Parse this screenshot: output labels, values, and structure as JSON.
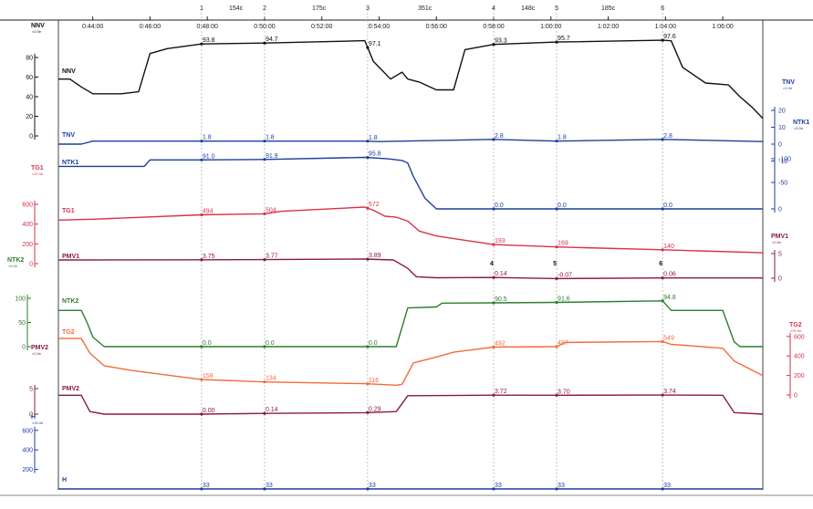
{
  "chart_data": {
    "type": "line",
    "time_ticks": [
      "0:44:00",
      "0:46:00",
      "0:48:00",
      "0:50:00",
      "0:52:00",
      "0:54:00",
      "0:56:00",
      "0:58:00",
      "1:00:00",
      "1:02:00",
      "1:04:00",
      "1:06:00"
    ],
    "x_range_min": [
      42.8,
      67.4
    ],
    "events": [
      {
        "mark": "1",
        "t": 47.8
      },
      {
        "mark": "2",
        "t": 50.0
      },
      {
        "mark": "3",
        "t": 53.6
      },
      {
        "mark": "4",
        "t": 58.0
      },
      {
        "mark": "5",
        "t": 60.2
      },
      {
        "mark": "6",
        "t": 63.9
      }
    ],
    "intervals": [
      {
        "label": "154c",
        "t": 49.0
      },
      {
        "label": "175c",
        "t": 51.9
      },
      {
        "label": "351c",
        "t": 55.6
      },
      {
        "label": "148c",
        "t": 59.2
      },
      {
        "label": "185c",
        "t": 62.0
      }
    ],
    "series": [
      {
        "name": "NNV",
        "color": "#111111",
        "points": [
          [
            42.8,
            58
          ],
          [
            43.2,
            58
          ],
          [
            43.6,
            50
          ],
          [
            44.0,
            43
          ],
          [
            45.0,
            43
          ],
          [
            45.6,
            45
          ],
          [
            46.0,
            84
          ],
          [
            46.6,
            89
          ],
          [
            47.8,
            93.8
          ],
          [
            50.0,
            94.7
          ],
          [
            53.5,
            97.1
          ],
          [
            53.8,
            76
          ],
          [
            54.2,
            64
          ],
          [
            54.4,
            58
          ],
          [
            54.8,
            65
          ],
          [
            55.0,
            58
          ],
          [
            55.4,
            55
          ],
          [
            56.0,
            47
          ],
          [
            56.6,
            47
          ],
          [
            57.0,
            88
          ],
          [
            58.0,
            93.3
          ],
          [
            60.2,
            95.7
          ],
          [
            63.9,
            97.6
          ],
          [
            64.2,
            97
          ],
          [
            64.6,
            70
          ],
          [
            65.4,
            54
          ],
          [
            66.2,
            52
          ],
          [
            66.6,
            40
          ],
          [
            67.0,
            30
          ],
          [
            67.4,
            18
          ]
        ],
        "labels": [
          {
            "text": "93.8",
            "t": 47.8
          },
          {
            "text": "94.7",
            "t": 50.0
          },
          {
            "text": "97.1",
            "t": 53.6
          },
          {
            "text": "93.3",
            "t": 58.0
          },
          {
            "text": "95.7",
            "t": 60.2
          },
          {
            "text": "97.6",
            "t": 63.9
          }
        ]
      },
      {
        "name": "TNV",
        "color": "#1c3f9c",
        "points": [
          [
            42.8,
            0
          ],
          [
            43.6,
            0
          ],
          [
            44.0,
            1.8
          ],
          [
            45.0,
            1.8
          ],
          [
            47.8,
            1.8
          ],
          [
            50.0,
            1.8
          ],
          [
            53.5,
            1.8
          ],
          [
            54.0,
            1.5
          ],
          [
            58.0,
            2.8
          ],
          [
            60.2,
            1.8
          ],
          [
            63.9,
            2.8
          ],
          [
            67.4,
            1.5
          ]
        ],
        "labels": [
          {
            "text": "1.8",
            "t": 47.8
          },
          {
            "text": "1.8",
            "t": 50.0
          },
          {
            "text": "1.8",
            "t": 53.6
          },
          {
            "text": "2.8",
            "t": 58.0
          },
          {
            "text": "1.8",
            "t": 60.2
          },
          {
            "text": "2.8",
            "t": 63.9
          }
        ]
      },
      {
        "name": "NTK1",
        "color": "#1c3f9c",
        "points": [
          [
            42.8,
            79
          ],
          [
            45.8,
            79
          ],
          [
            46.0,
            91
          ],
          [
            47.8,
            91.0
          ],
          [
            50.0,
            91.9
          ],
          [
            53.5,
            95.8
          ],
          [
            54.3,
            93
          ],
          [
            54.8,
            90
          ],
          [
            55.0,
            85
          ],
          [
            55.2,
            60
          ],
          [
            55.6,
            20
          ],
          [
            56.0,
            0
          ],
          [
            58.0,
            0
          ],
          [
            60.2,
            0
          ],
          [
            63.9,
            0
          ],
          [
            67.4,
            0
          ]
        ],
        "labels": [
          {
            "text": "91.0",
            "t": 47.8
          },
          {
            "text": "91.9",
            "t": 50.0
          },
          {
            "text": "95.8",
            "t": 53.6
          },
          {
            "text": "0.0",
            "t": 58.0
          },
          {
            "text": "0.0",
            "t": 60.2
          },
          {
            "text": "0.0",
            "t": 63.9
          }
        ]
      },
      {
        "name": "TG1",
        "color": "#d6324a",
        "points": [
          [
            42.8,
            440
          ],
          [
            44.0,
            450
          ],
          [
            47.8,
            494
          ],
          [
            50.0,
            504
          ],
          [
            50.6,
            530
          ],
          [
            53.5,
            572
          ],
          [
            53.8,
            540
          ],
          [
            54.2,
            480
          ],
          [
            54.6,
            470
          ],
          [
            55.0,
            430
          ],
          [
            55.4,
            330
          ],
          [
            56.0,
            280
          ],
          [
            58.0,
            193
          ],
          [
            60.2,
            169
          ],
          [
            63.9,
            140
          ],
          [
            67.4,
            110
          ]
        ],
        "labels": [
          {
            "text": "494",
            "t": 47.8
          },
          {
            "text": "504",
            "t": 50.0
          },
          {
            "text": "572",
            "t": 53.6
          },
          {
            "text": "193",
            "t": 58.0
          },
          {
            "text": "169",
            "t": 60.2
          },
          {
            "text": "140",
            "t": 63.9
          }
        ]
      },
      {
        "name": "PMV1",
        "color": "#8a1c3a",
        "points": [
          [
            42.8,
            3.7
          ],
          [
            47.8,
            3.75
          ],
          [
            50.0,
            3.77
          ],
          [
            53.5,
            3.89
          ],
          [
            54.5,
            3.7
          ],
          [
            55.0,
            2.0
          ],
          [
            55.3,
            0.3
          ],
          [
            56.0,
            0.1
          ],
          [
            58.0,
            0.14
          ],
          [
            60.2,
            -0.07
          ],
          [
            63.9,
            0.06
          ],
          [
            67.4,
            0.05
          ]
        ],
        "labels": [
          {
            "text": "3.75",
            "t": 47.8
          },
          {
            "text": "3.77",
            "t": 50.0
          },
          {
            "text": "3.89",
            "t": 53.6
          },
          {
            "text": "0.14",
            "t": 58.0
          },
          {
            "text": "-0.07",
            "t": 60.2
          },
          {
            "text": "0.06",
            "t": 63.9
          }
        ]
      },
      {
        "name": "NTK2",
        "color": "#2e7d2e",
        "points": [
          [
            42.8,
            75
          ],
          [
            43.6,
            75
          ],
          [
            43.8,
            50
          ],
          [
            44.0,
            20
          ],
          [
            44.4,
            0
          ],
          [
            47.8,
            0.0
          ],
          [
            50.0,
            0.0
          ],
          [
            53.5,
            0.0
          ],
          [
            54.6,
            0
          ],
          [
            55.0,
            80
          ],
          [
            56.0,
            82
          ],
          [
            56.2,
            90
          ],
          [
            58.0,
            90.5
          ],
          [
            60.2,
            91.6
          ],
          [
            63.9,
            94.8
          ],
          [
            64.2,
            75
          ],
          [
            66.0,
            75
          ],
          [
            66.4,
            10
          ],
          [
            66.6,
            0
          ],
          [
            67.4,
            0
          ]
        ],
        "labels": [
          {
            "text": "0.0",
            "t": 47.8
          },
          {
            "text": "0.0",
            "t": 50.0
          },
          {
            "text": "0.0",
            "t": 53.6
          },
          {
            "text": "90.5",
            "t": 58.0
          },
          {
            "text": "91.6",
            "t": 60.2
          },
          {
            "text": "94.8",
            "t": 63.9
          }
        ]
      },
      {
        "name": "TG2",
        "color": "#f26b3a",
        "points": [
          [
            42.8,
            580
          ],
          [
            43.6,
            580
          ],
          [
            43.9,
            430
          ],
          [
            44.4,
            300
          ],
          [
            45.4,
            250
          ],
          [
            47.8,
            158
          ],
          [
            50.0,
            134
          ],
          [
            53.5,
            116
          ],
          [
            54.6,
            100
          ],
          [
            54.8,
            110
          ],
          [
            55.2,
            330
          ],
          [
            56.0,
            390
          ],
          [
            56.6,
            440
          ],
          [
            58.0,
            492
          ],
          [
            60.2,
            497
          ],
          [
            60.5,
            540
          ],
          [
            63.9,
            549
          ],
          [
            64.2,
            520
          ],
          [
            66.0,
            480
          ],
          [
            66.4,
            350
          ],
          [
            67.4,
            200
          ]
        ],
        "labels": [
          {
            "text": "158",
            "t": 47.8
          },
          {
            "text": "134",
            "t": 50.0
          },
          {
            "text": "116",
            "t": 53.6
          },
          {
            "text": "492",
            "t": 58.0
          },
          {
            "text": "497",
            "t": 60.2
          },
          {
            "text": "549",
            "t": 63.9
          }
        ]
      },
      {
        "name": "PMV2",
        "color": "#8a1c3a",
        "points": [
          [
            42.8,
            3.7
          ],
          [
            43.6,
            3.7
          ],
          [
            43.9,
            0.5
          ],
          [
            44.4,
            0
          ],
          [
            47.8,
            0.0
          ],
          [
            50.0,
            0.14
          ],
          [
            53.5,
            0.29
          ],
          [
            54.6,
            0.5
          ],
          [
            55.0,
            3.6
          ],
          [
            58.0,
            3.72
          ],
          [
            60.2,
            3.7
          ],
          [
            63.9,
            3.74
          ],
          [
            66.0,
            3.7
          ],
          [
            66.4,
            0.3
          ],
          [
            67.4,
            0
          ]
        ],
        "labels": [
          {
            "text": "0.00",
            "t": 47.8
          },
          {
            "text": "0.14",
            "t": 50.0
          },
          {
            "text": "0.29",
            "t": 53.6
          },
          {
            "text": "3.72",
            "t": 58.0
          },
          {
            "text": "3.70",
            "t": 60.2
          },
          {
            "text": "3.74",
            "t": 63.9
          }
        ]
      },
      {
        "name": "H",
        "color": "#1c3f9c",
        "points": [
          [
            42.8,
            33
          ],
          [
            67.4,
            33
          ]
        ],
        "labels": [
          {
            "text": "33",
            "t": 47.8
          },
          {
            "text": "33",
            "t": 50.0
          },
          {
            "text": "33",
            "t": 53.6
          },
          {
            "text": "33",
            "t": 58.0
          },
          {
            "text": "33",
            "t": 60.2
          },
          {
            "text": "33",
            "t": 63.9
          }
        ]
      }
    ],
    "axes": [
      {
        "name": "NNV",
        "unit": "×2.0e",
        "side": "left",
        "color": "#111111",
        "ticks": [
          "80",
          "60",
          "40",
          "20",
          "0"
        ]
      },
      {
        "name": "TG1",
        "unit": "×20.0e",
        "side": "left",
        "color": "#d6324a",
        "ticks": [
          "600",
          "400",
          "200",
          "0"
        ]
      },
      {
        "name": "NTK2",
        "unit": "×5.0e",
        "side": "left",
        "color": "#2e7d2e",
        "ticks": [
          "100",
          "50",
          "0"
        ]
      },
      {
        "name": "PMV2",
        "unit": "×0.5e",
        "side": "left",
        "color": "#8a1c3a",
        "ticks": [
          "5",
          "0"
        ]
      },
      {
        "name": "H",
        "unit": "×20.0e",
        "side": "left",
        "color": "#1c3f9c",
        "ticks": [
          "600",
          "400",
          "200"
        ]
      },
      {
        "name": "TNV",
        "unit": "×1.0e",
        "side": "right",
        "color": "#1c3f9c",
        "ticks": [
          "20",
          "10",
          "0",
          "-10"
        ]
      },
      {
        "name": "NTK1",
        "unit": "×5.0e",
        "side": "right",
        "color": "#1c3f9c",
        "ticks": [
          "-100",
          "-50",
          "0"
        ]
      },
      {
        "name": "PMV1",
        "unit": "×0.5e",
        "side": "right",
        "color": "#8a1c3a",
        "ticks": [
          "5",
          "0"
        ]
      },
      {
        "name": "TG2",
        "unit": "×20.0e",
        "side": "right",
        "color": "#d6324a",
        "ticks": [
          "600",
          "400",
          "200",
          "0"
        ]
      }
    ]
  }
}
